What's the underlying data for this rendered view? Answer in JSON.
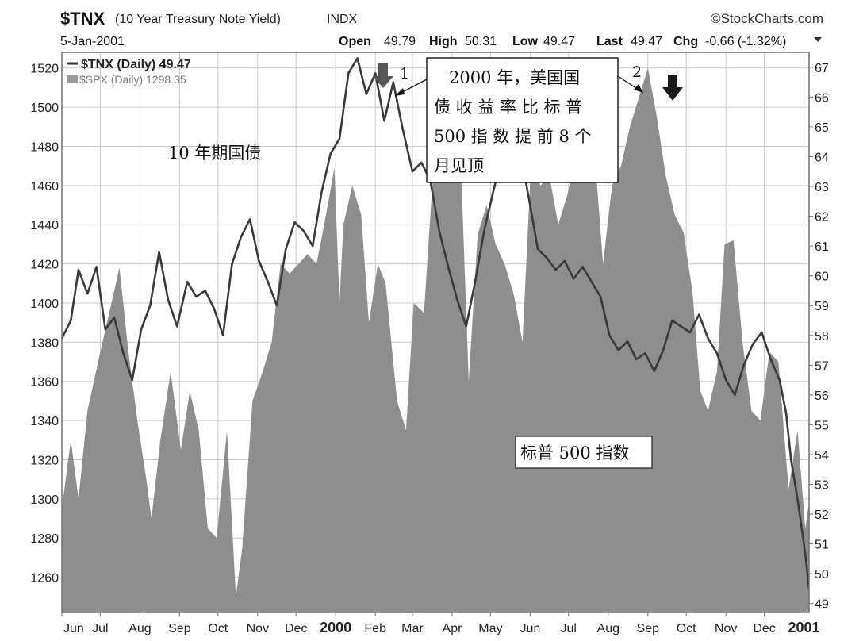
{
  "header": {
    "symbol": "$TNX",
    "description": "(10 Year Treasury Note Yield)",
    "exchange": "INDX",
    "brand": "©StockCharts.com",
    "date": "5-Jan-2001",
    "open_label": "Open",
    "open_value": "49.79",
    "high_label": "High",
    "high_value": "50.31",
    "low_label": "Low",
    "low_value": "49.47",
    "last_label": "Last",
    "last_value": "49.47",
    "chg_label": "Chg",
    "chg_value": "-0.66 (-1.32%)"
  },
  "legend": {
    "tnx": "$TNX (Daily) 49.47",
    "spx": "$SPX (Daily) 1298.35"
  },
  "annotations": {
    "peak1_marker": "1",
    "peak2_marker": "2",
    "callout_lines": [
      "2000 年，美国国",
      "债 收 益 率 比 标 普",
      "500 指 数 提 前 8 个",
      "月见顶"
    ],
    "tnx_label": "10 年期国债",
    "spx_label": "标普 500 指数"
  },
  "colors": {
    "spx_fill": "#8e8e8e",
    "tnx_line": "#3a3a3a",
    "grid": "#c8c8c8",
    "frame": "#707070",
    "arrow_dark": "#1a1a1a",
    "arrow_mid": "#5a5a5a"
  },
  "chart_data": {
    "type": "area",
    "grid": true,
    "legend_position": "top-left",
    "x_axis": {
      "type": "date",
      "range": [
        "1999-06-01",
        "2001-01-05"
      ],
      "tick_labels": [
        {
          "label": "Jun",
          "date": "1999-06-01"
        },
        {
          "label": "Jul",
          "date": "1999-07-01"
        },
        {
          "label": "Aug",
          "date": "1999-08-01"
        },
        {
          "label": "Sep",
          "date": "1999-09-01"
        },
        {
          "label": "Oct",
          "date": "1999-10-01"
        },
        {
          "label": "Nov",
          "date": "1999-11-01"
        },
        {
          "label": "Dec",
          "date": "1999-12-01"
        },
        {
          "label": "2000",
          "date": "2000-01-01",
          "bold": true
        },
        {
          "label": "Feb",
          "date": "2000-02-01"
        },
        {
          "label": "Mar",
          "date": "2000-03-01"
        },
        {
          "label": "Apr",
          "date": "2000-04-01"
        },
        {
          "label": "May",
          "date": "2000-05-01"
        },
        {
          "label": "Jun",
          "date": "2000-06-01"
        },
        {
          "label": "Jul",
          "date": "2000-07-01"
        },
        {
          "label": "Aug",
          "date": "2000-08-01"
        },
        {
          "label": "Sep",
          "date": "2000-09-01"
        },
        {
          "label": "Oct",
          "date": "2000-10-01"
        },
        {
          "label": "Nov",
          "date": "2000-11-01"
        },
        {
          "label": "Dec",
          "date": "2000-12-01"
        },
        {
          "label": "2001",
          "date": "2001-01-01",
          "bold": true
        }
      ]
    },
    "y_left": {
      "series": "$SPX",
      "range": [
        1242,
        1528
      ],
      "ticks": [
        1260,
        1280,
        1300,
        1320,
        1340,
        1360,
        1380,
        1400,
        1420,
        1440,
        1460,
        1480,
        1500,
        1520
      ]
    },
    "y_right": {
      "series": "$TNX",
      "range": [
        48.7,
        67.5
      ],
      "ticks": [
        49,
        50,
        51,
        52,
        53,
        54,
        55,
        56,
        57,
        58,
        59,
        60,
        61,
        62,
        63,
        64,
        65,
        66,
        67
      ]
    },
    "series": [
      {
        "name": "$SPX (Daily)",
        "style": "area",
        "axis": "left",
        "points": [
          [
            "1999-06-01",
            1295
          ],
          [
            "1999-06-08",
            1330
          ],
          [
            "1999-06-14",
            1300
          ],
          [
            "1999-06-21",
            1345
          ],
          [
            "1999-06-30",
            1372
          ],
          [
            "1999-07-08",
            1395
          ],
          [
            "1999-07-16",
            1418
          ],
          [
            "1999-07-23",
            1375
          ],
          [
            "1999-07-30",
            1340
          ],
          [
            "1999-08-06",
            1310
          ],
          [
            "1999-08-10",
            1290
          ],
          [
            "1999-08-17",
            1330
          ],
          [
            "1999-08-25",
            1365
          ],
          [
            "1999-09-02",
            1325
          ],
          [
            "1999-09-09",
            1355
          ],
          [
            "1999-09-16",
            1335
          ],
          [
            "1999-09-23",
            1285
          ],
          [
            "1999-09-30",
            1280
          ],
          [
            "1999-10-08",
            1335
          ],
          [
            "1999-10-15",
            1250
          ],
          [
            "1999-10-20",
            1275
          ],
          [
            "1999-10-28",
            1350
          ],
          [
            "1999-11-05",
            1365
          ],
          [
            "1999-11-12",
            1380
          ],
          [
            "1999-11-19",
            1420
          ],
          [
            "1999-11-26",
            1415
          ],
          [
            "1999-12-03",
            1420
          ],
          [
            "1999-12-10",
            1425
          ],
          [
            "1999-12-17",
            1420
          ],
          [
            "1999-12-23",
            1440
          ],
          [
            "1999-12-31",
            1469
          ],
          [
            "2000-01-04",
            1400
          ],
          [
            "2000-01-07",
            1440
          ],
          [
            "2000-01-14",
            1460
          ],
          [
            "2000-01-21",
            1445
          ],
          [
            "2000-01-27",
            1390
          ],
          [
            "2000-02-03",
            1420
          ],
          [
            "2000-02-09",
            1410
          ],
          [
            "2000-02-18",
            1350
          ],
          [
            "2000-02-25",
            1335
          ],
          [
            "2000-03-02",
            1400
          ],
          [
            "2000-03-10",
            1395
          ],
          [
            "2000-03-16",
            1455
          ],
          [
            "2000-03-24",
            1525
          ],
          [
            "2000-03-31",
            1500
          ],
          [
            "2000-04-06",
            1505
          ],
          [
            "2000-04-14",
            1360
          ],
          [
            "2000-04-21",
            1435
          ],
          [
            "2000-04-28",
            1450
          ],
          [
            "2000-05-05",
            1430
          ],
          [
            "2000-05-12",
            1420
          ],
          [
            "2000-05-19",
            1405
          ],
          [
            "2000-05-26",
            1380
          ],
          [
            "2000-06-02",
            1475
          ],
          [
            "2000-06-09",
            1460
          ],
          [
            "2000-06-16",
            1465
          ],
          [
            "2000-06-23",
            1440
          ],
          [
            "2000-06-30",
            1455
          ],
          [
            "2000-07-07",
            1475
          ],
          [
            "2000-07-14",
            1495
          ],
          [
            "2000-07-21",
            1480
          ],
          [
            "2000-07-28",
            1420
          ],
          [
            "2000-08-04",
            1460
          ],
          [
            "2000-08-11",
            1470
          ],
          [
            "2000-08-18",
            1490
          ],
          [
            "2000-08-25",
            1505
          ],
          [
            "2000-09-01",
            1520
          ],
          [
            "2000-09-08",
            1495
          ],
          [
            "2000-09-15",
            1465
          ],
          [
            "2000-09-22",
            1445
          ],
          [
            "2000-09-29",
            1436
          ],
          [
            "2000-10-06",
            1405
          ],
          [
            "2000-10-12",
            1355
          ],
          [
            "2000-10-18",
            1345
          ],
          [
            "2000-10-25",
            1365
          ],
          [
            "2000-10-31",
            1430
          ],
          [
            "2000-11-07",
            1432
          ],
          [
            "2000-11-14",
            1380
          ],
          [
            "2000-11-21",
            1345
          ],
          [
            "2000-11-28",
            1340
          ],
          [
            "2000-12-05",
            1375
          ],
          [
            "2000-12-12",
            1370
          ],
          [
            "2000-12-20",
            1305
          ],
          [
            "2000-12-27",
            1335
          ],
          [
            "2001-01-02",
            1285
          ],
          [
            "2001-01-05",
            1298
          ]
        ]
      },
      {
        "name": "$TNX (Daily)",
        "style": "line",
        "axis": "right",
        "points": [
          [
            "1999-06-01",
            57.9
          ],
          [
            "1999-06-08",
            58.5
          ],
          [
            "1999-06-14",
            60.2
          ],
          [
            "1999-06-21",
            59.4
          ],
          [
            "1999-06-28",
            60.3
          ],
          [
            "1999-07-05",
            58.2
          ],
          [
            "1999-07-12",
            58.6
          ],
          [
            "1999-07-19",
            57.4
          ],
          [
            "1999-07-26",
            56.5
          ],
          [
            "1999-08-02",
            58.2
          ],
          [
            "1999-08-09",
            59.0
          ],
          [
            "1999-08-16",
            60.8
          ],
          [
            "1999-08-23",
            59.2
          ],
          [
            "1999-08-30",
            58.3
          ],
          [
            "1999-09-07",
            59.8
          ],
          [
            "1999-09-14",
            59.3
          ],
          [
            "1999-09-21",
            59.5
          ],
          [
            "1999-09-28",
            58.9
          ],
          [
            "1999-10-05",
            58.0
          ],
          [
            "1999-10-12",
            60.4
          ],
          [
            "1999-10-19",
            61.3
          ],
          [
            "1999-10-26",
            61.9
          ],
          [
            "1999-11-02",
            60.5
          ],
          [
            "1999-11-09",
            59.8
          ],
          [
            "1999-11-16",
            59.0
          ],
          [
            "1999-11-23",
            60.9
          ],
          [
            "1999-11-30",
            61.8
          ],
          [
            "1999-12-07",
            61.5
          ],
          [
            "1999-12-14",
            61.0
          ],
          [
            "1999-12-21",
            62.8
          ],
          [
            "1999-12-28",
            64.1
          ],
          [
            "2000-01-04",
            64.6
          ],
          [
            "2000-01-11",
            66.8
          ],
          [
            "2000-01-18",
            67.3
          ],
          [
            "2000-01-25",
            66.1
          ],
          [
            "2000-02-01",
            66.8
          ],
          [
            "2000-02-08",
            65.2
          ],
          [
            "2000-02-15",
            66.5
          ],
          [
            "2000-02-22",
            65.0
          ],
          [
            "2000-03-01",
            63.5
          ],
          [
            "2000-03-08",
            63.8
          ],
          [
            "2000-03-15",
            63.2
          ],
          [
            "2000-03-22",
            61.5
          ],
          [
            "2000-03-29",
            60.3
          ],
          [
            "2000-04-05",
            59.2
          ],
          [
            "2000-04-12",
            58.3
          ],
          [
            "2000-04-19",
            59.8
          ],
          [
            "2000-04-26",
            61.5
          ],
          [
            "2000-05-03",
            62.8
          ],
          [
            "2000-05-10",
            64.0
          ],
          [
            "2000-05-17",
            64.6
          ],
          [
            "2000-05-24",
            64.2
          ],
          [
            "2000-05-31",
            62.6
          ],
          [
            "2000-06-07",
            60.9
          ],
          [
            "2000-06-14",
            60.6
          ],
          [
            "2000-06-21",
            60.2
          ],
          [
            "2000-06-28",
            60.5
          ],
          [
            "2000-07-05",
            59.9
          ],
          [
            "2000-07-12",
            60.3
          ],
          [
            "2000-07-19",
            59.8
          ],
          [
            "2000-07-26",
            59.3
          ],
          [
            "2000-08-02",
            58.0
          ],
          [
            "2000-08-09",
            57.5
          ],
          [
            "2000-08-16",
            57.8
          ],
          [
            "2000-08-23",
            57.2
          ],
          [
            "2000-08-30",
            57.4
          ],
          [
            "2000-09-06",
            56.8
          ],
          [
            "2000-09-13",
            57.5
          ],
          [
            "2000-09-20",
            58.5
          ],
          [
            "2000-09-27",
            58.3
          ],
          [
            "2000-10-04",
            58.1
          ],
          [
            "2000-10-11",
            58.7
          ],
          [
            "2000-10-18",
            57.9
          ],
          [
            "2000-10-25",
            57.4
          ],
          [
            "2000-11-01",
            56.5
          ],
          [
            "2000-11-08",
            56.0
          ],
          [
            "2000-11-15",
            57.0
          ],
          [
            "2000-11-22",
            57.7
          ],
          [
            "2000-11-29",
            58.1
          ],
          [
            "2000-12-06",
            57.2
          ],
          [
            "2000-12-13",
            56.5
          ],
          [
            "2000-12-18",
            55.4
          ],
          [
            "2000-12-22",
            53.8
          ],
          [
            "2000-12-27",
            52.5
          ],
          [
            "2001-01-01",
            51.0
          ],
          [
            "2001-01-03",
            50.3
          ],
          [
            "2001-01-05",
            49.47
          ]
        ]
      }
    ]
  }
}
